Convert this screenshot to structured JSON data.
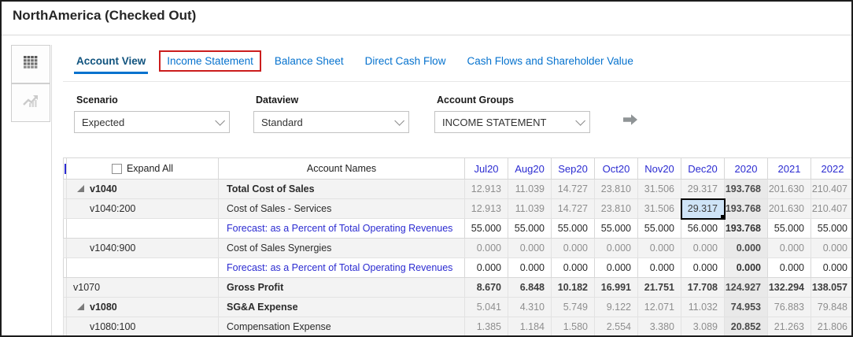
{
  "title": "NorthAmerica (Checked Out)",
  "tabs": [
    {
      "label": "Account View",
      "active": true,
      "highlighted": false
    },
    {
      "label": "Income Statement",
      "active": false,
      "highlighted": true
    },
    {
      "label": "Balance Sheet",
      "active": false,
      "highlighted": false
    },
    {
      "label": "Direct Cash Flow",
      "active": false,
      "highlighted": false
    },
    {
      "label": "Cash Flows and Shareholder Value",
      "active": false,
      "highlighted": false
    }
  ],
  "filters": [
    {
      "label": "Scenario",
      "value": "Expected"
    },
    {
      "label": "Dataview",
      "value": "Standard"
    },
    {
      "label": "Account Groups",
      "value": "INCOME STATEMENT"
    }
  ],
  "table": {
    "expand_all_label": "Expand All",
    "expand_all_checked": false,
    "account_names_header": "Account Names",
    "periods": [
      "Jul20",
      "Aug20",
      "Sep20",
      "Oct20",
      "Nov20",
      "Dec20",
      "2020",
      "2021",
      "2022"
    ],
    "selected_cell": {
      "row": 1,
      "col": 5,
      "value": "29.317"
    },
    "rows": [
      {
        "code": "v1040",
        "name": "Total Cost of Sales",
        "level": 1,
        "expandable": true,
        "code_bold": true,
        "name_bold": true,
        "name_link": false,
        "shade": "gray",
        "values_style": "muted",
        "values": [
          "12.913",
          "11.039",
          "14.727",
          "23.810",
          "31.506",
          "29.317",
          "193.768",
          "201.630",
          "210.407"
        ]
      },
      {
        "code": "v1040:200",
        "name": "Cost of Sales - Services",
        "level": 2,
        "expandable": false,
        "code_bold": false,
        "name_bold": false,
        "name_link": false,
        "shade": "gray",
        "values_style": "muted",
        "values": [
          "12.913",
          "11.039",
          "14.727",
          "23.810",
          "31.506",
          "29.317",
          "193.768",
          "201.630",
          "210.407"
        ]
      },
      {
        "code": "",
        "name": "Forecast: as a Percent of Total Operating Revenues",
        "level": 2,
        "expandable": false,
        "code_bold": false,
        "name_bold": false,
        "name_link": true,
        "shade": "white",
        "values_style": "dark",
        "values": [
          "55.000",
          "55.000",
          "55.000",
          "55.000",
          "55.000",
          "56.000",
          "193.768",
          "55.000",
          "55.000"
        ]
      },
      {
        "code": "v1040:900",
        "name": "Cost of Sales Synergies",
        "level": 2,
        "expandable": false,
        "code_bold": false,
        "name_bold": false,
        "name_link": false,
        "shade": "gray",
        "values_style": "muted",
        "values": [
          "0.000",
          "0.000",
          "0.000",
          "0.000",
          "0.000",
          "0.000",
          "0.000",
          "0.000",
          "0.000"
        ]
      },
      {
        "code": "",
        "name": "Forecast: as a Percent of Total Operating Revenues",
        "level": 2,
        "expandable": false,
        "code_bold": false,
        "name_bold": false,
        "name_link": true,
        "shade": "white",
        "values_style": "dark",
        "values": [
          "0.000",
          "0.000",
          "0.000",
          "0.000",
          "0.000",
          "0.000",
          "0.000",
          "0.000",
          "0.000"
        ]
      },
      {
        "code": "v1070",
        "name": "Gross Profit",
        "level": 0,
        "expandable": false,
        "code_bold": false,
        "name_bold": true,
        "name_link": false,
        "shade": "gray",
        "values_style": "bold",
        "values": [
          "8.670",
          "6.848",
          "10.182",
          "16.991",
          "21.751",
          "17.708",
          "124.927",
          "132.294",
          "138.057"
        ]
      },
      {
        "code": "v1080",
        "name": "SG&A Expense",
        "level": 1,
        "expandable": true,
        "code_bold": true,
        "name_bold": true,
        "name_link": false,
        "shade": "gray",
        "values_style": "muted",
        "values": [
          "5.041",
          "4.310",
          "5.749",
          "9.122",
          "12.071",
          "11.032",
          "74.953",
          "76.883",
          "79.848"
        ]
      },
      {
        "code": "v1080:100",
        "name": "Compensation Expense",
        "level": 2,
        "expandable": false,
        "code_bold": false,
        "name_bold": false,
        "name_link": false,
        "shade": "gray",
        "values_style": "muted",
        "values": [
          "1.385",
          "1.184",
          "1.580",
          "2.554",
          "3.380",
          "3.089",
          "20.852",
          "21.263",
          "21.806"
        ]
      }
    ]
  },
  "colors": {
    "tab_blue": "#0572ce",
    "active_tab_blue": "#10537e",
    "period_link_blue": "#2b2bd1",
    "highlight_red": "#cb1d1d",
    "selected_cell_bg": "#cfe4f7",
    "row_shade_gray": "#f3f3f3",
    "total_column_shade": "#e9e9e9"
  }
}
